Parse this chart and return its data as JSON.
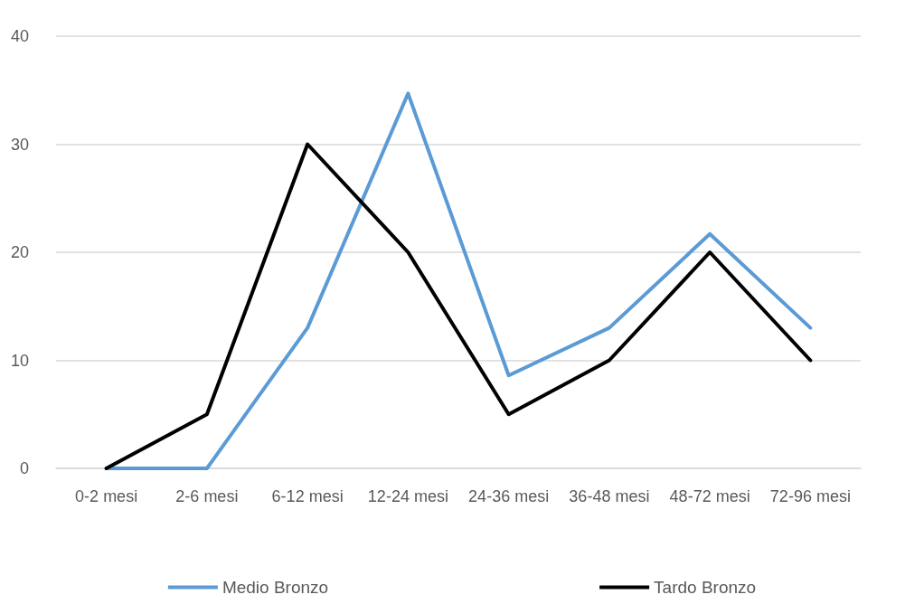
{
  "chart_data": {
    "type": "line",
    "categories": [
      "0-2 mesi",
      "2-6 mesi",
      "6-12 mesi",
      "12-24 mesi",
      "24-36 mesi",
      "36-48 mesi",
      "48-72 mesi",
      "72-96 mesi"
    ],
    "series": [
      {
        "name": "Medio Bronzo",
        "color": "#5b9bd5",
        "values": [
          0,
          0,
          13,
          34.7,
          8.6,
          13,
          21.7,
          13
        ]
      },
      {
        "name": "Tardo Bronzo",
        "color": "#000000",
        "values": [
          0,
          5,
          30,
          20,
          5,
          10,
          20,
          10
        ]
      }
    ],
    "ylim": [
      0,
      40
    ],
    "yticks": [
      0,
      10,
      20,
      30,
      40
    ],
    "grid": "y",
    "legend": "bottom",
    "marker": "none",
    "line_style": "solid"
  }
}
